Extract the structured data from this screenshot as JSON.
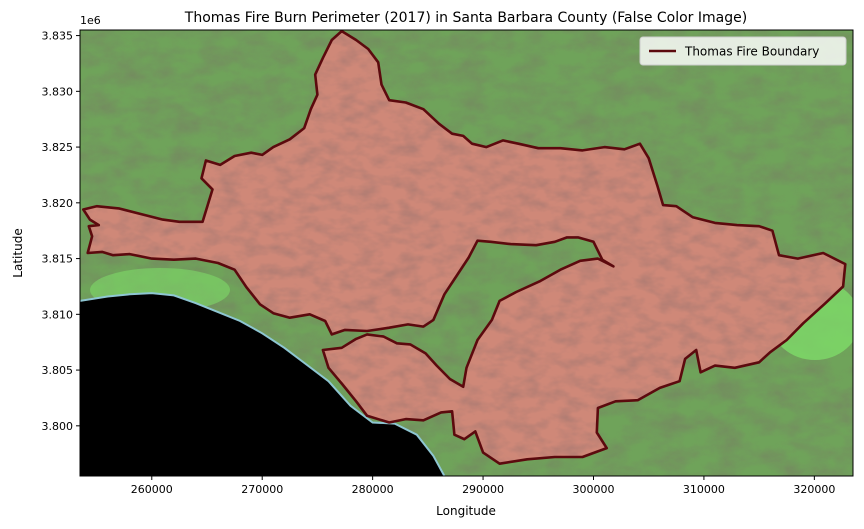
{
  "chart_data": {
    "type": "map",
    "title": "Thomas Fire Burn Perimeter (2017) in Santa Barbara County (False Color Image)",
    "xlabel": "Longitude",
    "ylabel": "Latitude",
    "y_offset_label": "1e6",
    "xlim": [
      253500,
      323500
    ],
    "ylim": [
      3795500,
      3835500
    ],
    "x_ticks": [
      260000,
      270000,
      280000,
      290000,
      300000,
      310000,
      320000
    ],
    "x_tick_labels": [
      "260000",
      "270000",
      "280000",
      "290000",
      "300000",
      "310000",
      "320000"
    ],
    "y_ticks": [
      3800000,
      3805000,
      3810000,
      3815000,
      3820000,
      3825000,
      3830000,
      3835000
    ],
    "y_tick_labels": [
      "3.800",
      "3.805",
      "3.810",
      "3.815",
      "3.820",
      "3.825",
      "3.830",
      "3.835"
    ],
    "legend": {
      "position": "top-right",
      "entries": [
        {
          "label": "Thomas Fire Boundary",
          "color": "#5c0a0e"
        }
      ]
    },
    "colors": {
      "boundary": "#5c0a0e",
      "burn_fill": "#cf8878",
      "vegetation": "#6fa35a",
      "vegetation_bright": "#7fe06a",
      "ocean": "#000000",
      "coastline": "#8ec6d2"
    },
    "coastline": [
      [
        253500,
        3811200
      ],
      [
        256000,
        3811600
      ],
      [
        258000,
        3811800
      ],
      [
        260000,
        3811900
      ],
      [
        262000,
        3811700
      ],
      [
        264000,
        3811000
      ],
      [
        266000,
        3810200
      ],
      [
        268000,
        3809400
      ],
      [
        270000,
        3808300
      ],
      [
        272000,
        3807000
      ],
      [
        274000,
        3805500
      ],
      [
        276000,
        3804000
      ],
      [
        278000,
        3801800
      ],
      [
        280000,
        3800300
      ],
      [
        282000,
        3800200
      ],
      [
        284000,
        3799200
      ],
      [
        285500,
        3797300
      ],
      [
        286500,
        3795500
      ]
    ],
    "fire_boundary": [
      [
        277200,
        3835400
      ],
      [
        278500,
        3834600
      ],
      [
        279600,
        3833800
      ],
      [
        280500,
        3832600
      ],
      [
        280800,
        3830600
      ],
      [
        281500,
        3829200
      ],
      [
        283000,
        3829000
      ],
      [
        284600,
        3828400
      ],
      [
        286000,
        3827100
      ],
      [
        287200,
        3826200
      ],
      [
        288200,
        3826000
      ],
      [
        289000,
        3825300
      ],
      [
        290300,
        3825000
      ],
      [
        291800,
        3825600
      ],
      [
        293200,
        3825300
      ],
      [
        295000,
        3824900
      ],
      [
        297000,
        3824900
      ],
      [
        299000,
        3824700
      ],
      [
        301000,
        3825000
      ],
      [
        302800,
        3824800
      ],
      [
        304200,
        3825300
      ],
      [
        305000,
        3824000
      ],
      [
        305800,
        3821500
      ],
      [
        306300,
        3819800
      ],
      [
        307500,
        3819700
      ],
      [
        309000,
        3818700
      ],
      [
        311000,
        3818200
      ],
      [
        313000,
        3818000
      ],
      [
        315000,
        3817900
      ],
      [
        316200,
        3817500
      ],
      [
        316800,
        3815300
      ],
      [
        318500,
        3815000
      ],
      [
        320800,
        3815500
      ],
      [
        322800,
        3814500
      ],
      [
        322600,
        3812500
      ],
      [
        321000,
        3811000
      ],
      [
        319000,
        3809200
      ],
      [
        317500,
        3807700
      ],
      [
        316000,
        3806600
      ],
      [
        315000,
        3805700
      ],
      [
        312800,
        3805200
      ],
      [
        311000,
        3805400
      ],
      [
        309700,
        3804800
      ],
      [
        309300,
        3806800
      ],
      [
        308300,
        3806000
      ],
      [
        307800,
        3804000
      ],
      [
        306000,
        3803400
      ],
      [
        304000,
        3802300
      ],
      [
        302000,
        3802200
      ],
      [
        300400,
        3801600
      ],
      [
        300300,
        3799400
      ],
      [
        301200,
        3798000
      ],
      [
        299000,
        3797200
      ],
      [
        296500,
        3797200
      ],
      [
        294000,
        3797000
      ],
      [
        291500,
        3796600
      ],
      [
        290000,
        3797600
      ],
      [
        289300,
        3799500
      ],
      [
        288300,
        3798800
      ],
      [
        287400,
        3799200
      ],
      [
        287200,
        3801300
      ],
      [
        286200,
        3801200
      ],
      [
        284600,
        3800500
      ],
      [
        283000,
        3800600
      ],
      [
        281500,
        3800300
      ],
      [
        279500,
        3800900
      ],
      [
        278500,
        3802200
      ],
      [
        277200,
        3803800
      ],
      [
        276000,
        3805200
      ],
      [
        275500,
        3806800
      ],
      [
        277200,
        3807000
      ],
      [
        278500,
        3807800
      ],
      [
        279500,
        3808200
      ],
      [
        281000,
        3808000
      ],
      [
        282200,
        3807400
      ],
      [
        283400,
        3807300
      ],
      [
        284800,
        3806500
      ],
      [
        285800,
        3805400
      ],
      [
        287000,
        3804200
      ],
      [
        288200,
        3803500
      ],
      [
        288500,
        3805200
      ],
      [
        289500,
        3807700
      ],
      [
        290800,
        3809500
      ],
      [
        291500,
        3811200
      ],
      [
        293000,
        3812000
      ],
      [
        295200,
        3813000
      ],
      [
        297000,
        3814000
      ],
      [
        298800,
        3814800
      ],
      [
        300400,
        3815000
      ],
      [
        301800,
        3814300
      ],
      [
        300800,
        3814900
      ],
      [
        300000,
        3816500
      ],
      [
        298600,
        3816900
      ],
      [
        297600,
        3816900
      ],
      [
        296500,
        3816500
      ],
      [
        294800,
        3816200
      ],
      [
        292500,
        3816300
      ],
      [
        290700,
        3816500
      ],
      [
        289500,
        3816600
      ],
      [
        288700,
        3815100
      ],
      [
        287500,
        3813300
      ],
      [
        286500,
        3811800
      ],
      [
        285500,
        3809500
      ],
      [
        284600,
        3808900
      ],
      [
        283200,
        3809100
      ],
      [
        281500,
        3808800
      ],
      [
        279500,
        3808500
      ],
      [
        277500,
        3808600
      ],
      [
        276300,
        3808200
      ],
      [
        275700,
        3809400
      ],
      [
        274300,
        3810000
      ],
      [
        272500,
        3809700
      ],
      [
        271000,
        3810100
      ],
      [
        269800,
        3810900
      ],
      [
        268600,
        3812400
      ],
      [
        267500,
        3814000
      ],
      [
        266000,
        3814600
      ],
      [
        264000,
        3815000
      ],
      [
        262000,
        3814900
      ],
      [
        260000,
        3815000
      ],
      [
        258000,
        3815400
      ],
      [
        256500,
        3815300
      ],
      [
        255500,
        3815600
      ],
      [
        254200,
        3815500
      ],
      [
        254600,
        3817000
      ],
      [
        254300,
        3817900
      ],
      [
        255200,
        3818000
      ],
      [
        254400,
        3818500
      ],
      [
        253800,
        3819400
      ],
      [
        255000,
        3819700
      ],
      [
        257000,
        3819500
      ],
      [
        259000,
        3819000
      ],
      [
        261000,
        3818500
      ],
      [
        262500,
        3818300
      ],
      [
        264600,
        3818300
      ],
      [
        265500,
        3821200
      ],
      [
        264500,
        3822200
      ],
      [
        264900,
        3823800
      ],
      [
        266200,
        3823400
      ],
      [
        267500,
        3824200
      ],
      [
        269000,
        3824500
      ],
      [
        270000,
        3824300
      ],
      [
        271000,
        3825000
      ],
      [
        272500,
        3825700
      ],
      [
        273800,
        3826700
      ],
      [
        274400,
        3828400
      ],
      [
        275000,
        3829700
      ],
      [
        274800,
        3831500
      ],
      [
        275500,
        3833000
      ],
      [
        276300,
        3834600
      ]
    ]
  }
}
